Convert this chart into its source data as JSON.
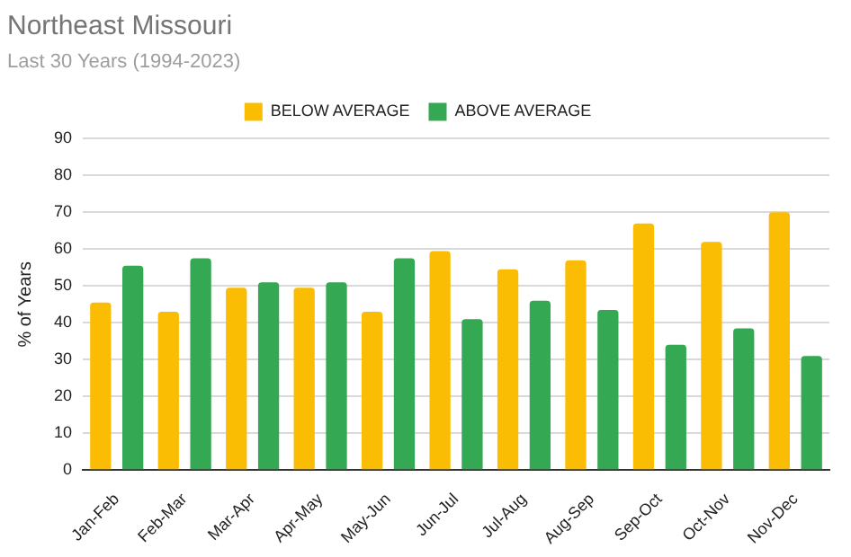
{
  "chart_data": {
    "type": "bar",
    "title": "Northeast Missouri",
    "subtitle": "Last 30 Years (1994-2023)",
    "ylabel": "% of Years",
    "categories": [
      "Jan-Feb",
      "Feb-Mar",
      "Mar-Apr",
      "Apr-May",
      "May-Jun",
      "Jun-Jul",
      "Jul-Aug",
      "Aug-Sep",
      "Sep-Oct",
      "Oct-Nov",
      "Nov-Dec"
    ],
    "series": [
      {
        "name": "BELOW AVERAGE",
        "color": "#fbbc04",
        "values": [
          45.5,
          43,
          49.5,
          49.5,
          43,
          59.5,
          54.5,
          57,
          67,
          62,
          70
        ]
      },
      {
        "name": "ABOVE AVERAGE",
        "color": "#34a853",
        "values": [
          55.5,
          57.5,
          51,
          51,
          57.5,
          41,
          46,
          43.5,
          34,
          38.5,
          31
        ]
      }
    ],
    "ylim": [
      0,
      90
    ],
    "yticks": [
      0,
      10,
      20,
      30,
      40,
      50,
      60,
      70,
      80,
      90
    ],
    "grid": "y",
    "legend": "top"
  }
}
